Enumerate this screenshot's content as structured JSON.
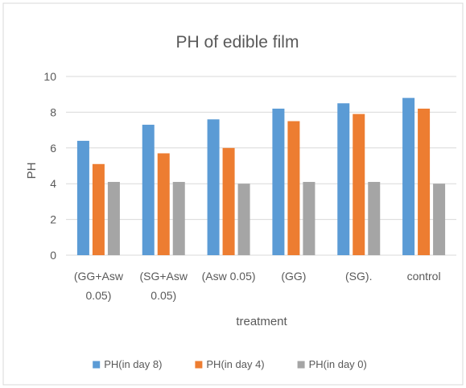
{
  "chart_data": {
    "type": "bar",
    "title": "PH of edible film",
    "xlabel": "treatment",
    "ylabel": "PH",
    "ylim": [
      0,
      10
    ],
    "yticks": [
      0,
      2,
      4,
      6,
      8,
      10
    ],
    "grid": true,
    "legend_position": "bottom",
    "categories": [
      [
        "(GG+Asw",
        "0.05)"
      ],
      [
        "(SG+Asw",
        "0.05)"
      ],
      [
        "(Asw 0.05)"
      ],
      [
        "(GG)"
      ],
      [
        "(SG)."
      ],
      [
        "control"
      ]
    ],
    "series": [
      {
        "name": "PH(in day 8)",
        "color": "#5B9BD5",
        "values": [
          6.4,
          7.3,
          7.6,
          8.2,
          8.5,
          8.8
        ]
      },
      {
        "name": "PH(in day 4)",
        "color": "#ED7D31",
        "values": [
          5.1,
          5.7,
          6.0,
          7.5,
          7.9,
          8.2
        ]
      },
      {
        "name": "PH(in day 0)",
        "color": "#A5A5A5",
        "values": [
          4.1,
          4.1,
          4.0,
          4.1,
          4.1,
          4.0
        ]
      }
    ]
  }
}
